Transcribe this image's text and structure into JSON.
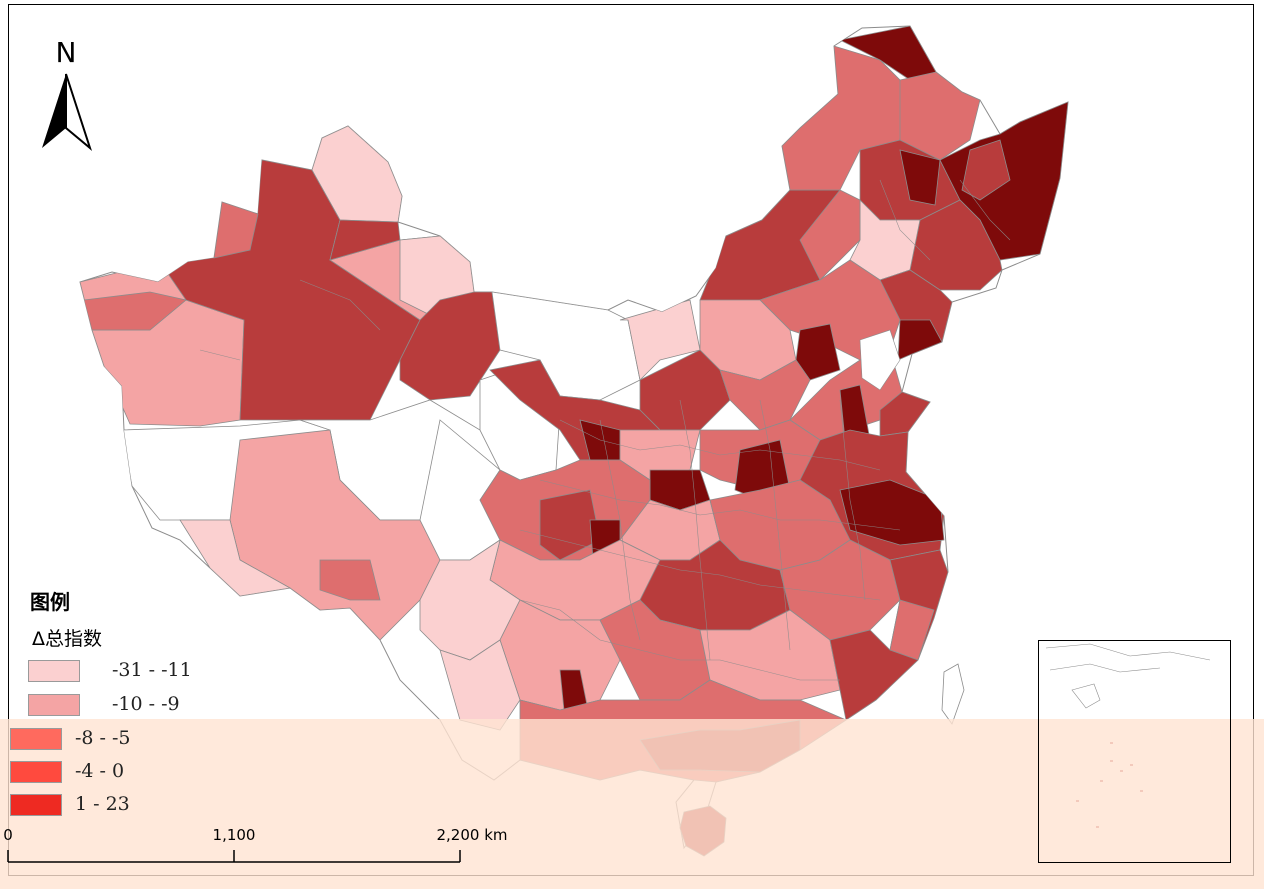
{
  "map": {
    "north_label": "N",
    "legend": {
      "title": "图例",
      "subtitle": "Δ总指数",
      "classes": [
        {
          "label": "-31  -  -11",
          "color": "#fbd0d0"
        },
        {
          "label": "-10  -  -9",
          "color": "#f4a4a4"
        },
        {
          "label": "-8  -  -5",
          "color": "#de6e6e"
        },
        {
          "label": "-4  -  0",
          "color": "#b83c3c"
        },
        {
          "label": "1  -  23",
          "color": "#7e0a0a"
        }
      ],
      "overlay_colors": [
        "#ffd5d0",
        "#f59c92",
        "#ff6a5e",
        "#ff4a3e",
        "#ee2a22"
      ]
    },
    "scale_bar": {
      "labels": [
        "0",
        "1,100",
        "2,200 km"
      ]
    },
    "colors": {
      "no_data": "#ffffff",
      "boundary": "#8c8c8c",
      "overlay": "#ffe4d2"
    }
  }
}
